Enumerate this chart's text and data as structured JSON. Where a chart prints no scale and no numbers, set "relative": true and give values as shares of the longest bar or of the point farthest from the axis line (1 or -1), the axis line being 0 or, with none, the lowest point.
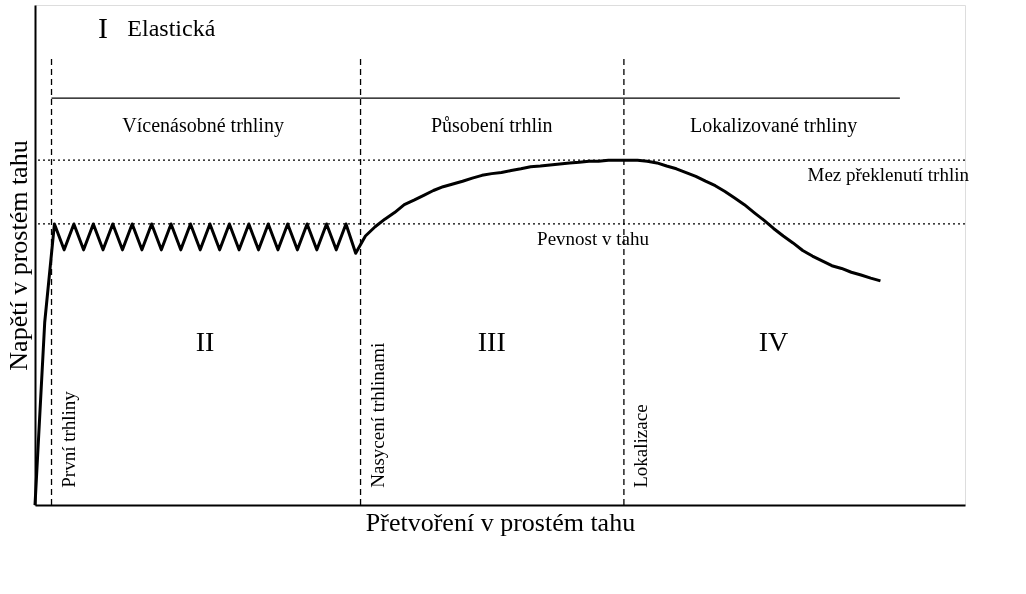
{
  "chart_data": {
    "type": "line",
    "relative": true,
    "xlabel": "Přetvoření v prostém tahu",
    "ylabel": "Napětí v prostém tahu",
    "categories": [
      null,
      null,
      null,
      null,
      null,
      null,
      null,
      null,
      null,
      null,
      null,
      null,
      null,
      null,
      null,
      null,
      null,
      null,
      null,
      null,
      null,
      null,
      null,
      null,
      null,
      null,
      null,
      null,
      null,
      null,
      null,
      null,
      null,
      null,
      null,
      null,
      null,
      null,
      null,
      null,
      null,
      null,
      null,
      null,
      null,
      null,
      null,
      null,
      null,
      null,
      null,
      null,
      null,
      null,
      null,
      null,
      null,
      null,
      null,
      null,
      null,
      null,
      null,
      null,
      null,
      null,
      null,
      null,
      null,
      null,
      null,
      null,
      null,
      null,
      null,
      null,
      null,
      null,
      null,
      null,
      null,
      null,
      null,
      null,
      null,
      null,
      null,
      null
    ],
    "series": [
      {
        "color": "#000000",
        "values": [
          0,
          0.53,
          0.815,
          0.74,
          0.815,
          0.74,
          0.815,
          0.74,
          0.815,
          0.74,
          0.815,
          0.74,
          0.815,
          0.74,
          0.815,
          0.74,
          0.815,
          0.74,
          0.815,
          0.74,
          0.815,
          0.74,
          0.815,
          0.74,
          0.815,
          0.74,
          0.815,
          0.74,
          0.815,
          0.74,
          0.815,
          0.74,
          0.815,
          0.73,
          0.78,
          0.807,
          0.829,
          0.848,
          0.871,
          0.884,
          0.898,
          0.912,
          0.923,
          0.931,
          0.939,
          0.948,
          0.956,
          0.961,
          0.964,
          0.97,
          0.975,
          0.981,
          0.983,
          0.986,
          0.989,
          0.992,
          0.994,
          0.997,
          0.997,
          1,
          1,
          1,
          1,
          0.997,
          0.992,
          0.983,
          0.975,
          0.964,
          0.953,
          0.939,
          0.926,
          0.909,
          0.89,
          0.871,
          0.848,
          0.826,
          0.802,
          0.78,
          0.76,
          0.738,
          0.722,
          0.708,
          0.694,
          0.686,
          0.675,
          0.667,
          0.658,
          0.65
        ]
      }
    ],
    "ref_lines": [
      {
        "axis": "y",
        "value": 0.815,
        "label": "Pevnost v tahu",
        "line_style": "dotted"
      },
      {
        "axis": "y",
        "value": 1,
        "label": "Mez překlenutí trhlin",
        "line_style": "dotted"
      }
    ],
    "annotations": [
      "I",
      "Elastická",
      "Vícenásobné trhliny",
      "Působení trhlin",
      "Lokalizované trhliny",
      "II",
      "III",
      "IV",
      "První trhliny",
      "Nasycení trhlinami",
      "Lokalizace"
    ],
    "grid": false,
    "tick_labels": false,
    "marker": "none",
    "line_style": "solid"
  }
}
